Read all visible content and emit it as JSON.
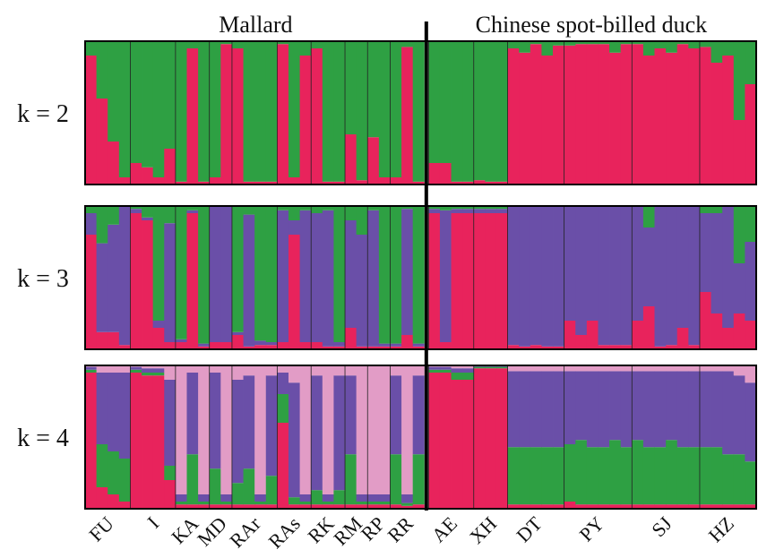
{
  "chart_data": {
    "type": "bar",
    "layout": "stacked-admixture-barplot",
    "group_labels": [
      "Mallard",
      "Chinese spot-billed duck"
    ],
    "row_labels": [
      "k = 2",
      "k = 3",
      "k = 4"
    ],
    "populations": [
      {
        "label": "FU",
        "group": 0,
        "n": 4
      },
      {
        "label": "I",
        "group": 0,
        "n": 4
      },
      {
        "label": "KA",
        "group": 0,
        "n": 3
      },
      {
        "label": "MD",
        "group": 0,
        "n": 2
      },
      {
        "label": "RAr",
        "group": 0,
        "n": 4
      },
      {
        "label": "RAs",
        "group": 0,
        "n": 3
      },
      {
        "label": "RK",
        "group": 0,
        "n": 3
      },
      {
        "label": "RM",
        "group": 0,
        "n": 2
      },
      {
        "label": "RP",
        "group": 0,
        "n": 2
      },
      {
        "label": "RR",
        "group": 0,
        "n": 3
      },
      {
        "label": "AE",
        "group": 1,
        "n": 4
      },
      {
        "label": "XH",
        "group": 1,
        "n": 3
      },
      {
        "label": "DT",
        "group": 1,
        "n": 5
      },
      {
        "label": "PY",
        "group": 1,
        "n": 6
      },
      {
        "label": "SJ",
        "group": 1,
        "n": 6
      },
      {
        "label": "HZ",
        "group": 1,
        "n": 5
      }
    ],
    "colors": {
      "red": "#e8235c",
      "green": "#2ea043",
      "purple": "#6a4fa8",
      "pink": "#e29cc6"
    },
    "panels": [
      {
        "k": 2,
        "clusters": [
          "red",
          "green"
        ],
        "individuals": [
          [
            0.9,
            0.1
          ],
          [
            0.6,
            0.4
          ],
          [
            0.3,
            0.7
          ],
          [
            0.05,
            0.95
          ],
          [
            0.15,
            0.85
          ],
          [
            0.12,
            0.88
          ],
          [
            0.05,
            0.95
          ],
          [
            0.25,
            0.75
          ],
          [
            0.02,
            0.98
          ],
          [
            0.95,
            0.05
          ],
          [
            0.02,
            0.98
          ],
          [
            0.05,
            0.95
          ],
          [
            0.98,
            0.02
          ],
          [
            0.95,
            0.05
          ],
          [
            0.02,
            0.98
          ],
          [
            0.02,
            0.98
          ],
          [
            0.02,
            0.98
          ],
          [
            0.98,
            0.02
          ],
          [
            0.05,
            0.95
          ],
          [
            0.9,
            0.1
          ],
          [
            0.95,
            0.05
          ],
          [
            0.02,
            0.98
          ],
          [
            0.02,
            0.98
          ],
          [
            0.35,
            0.65
          ],
          [
            0.03,
            0.97
          ],
          [
            0.33,
            0.67
          ],
          [
            0.05,
            0.95
          ],
          [
            0.05,
            0.95
          ],
          [
            0.96,
            0.04
          ],
          [
            0.02,
            0.98
          ],
          [
            0.15,
            0.85
          ],
          [
            0.15,
            0.85
          ],
          [
            0.02,
            0.98
          ],
          [
            0.02,
            0.98
          ],
          [
            0.03,
            0.97
          ],
          [
            0.02,
            0.98
          ],
          [
            0.02,
            0.98
          ],
          [
            0.95,
            0.05
          ],
          [
            0.92,
            0.08
          ],
          [
            0.98,
            0.02
          ],
          [
            0.9,
            0.1
          ],
          [
            0.97,
            0.03
          ],
          [
            0.97,
            0.03
          ],
          [
            0.98,
            0.02
          ],
          [
            0.98,
            0.02
          ],
          [
            0.98,
            0.02
          ],
          [
            0.92,
            0.08
          ],
          [
            0.98,
            0.02
          ],
          [
            0.98,
            0.02
          ],
          [
            0.9,
            0.1
          ],
          [
            0.95,
            0.05
          ],
          [
            0.92,
            0.08
          ],
          [
            0.98,
            0.02
          ],
          [
            0.95,
            0.05
          ],
          [
            0.96,
            0.04
          ],
          [
            0.85,
            0.15
          ],
          [
            0.9,
            0.1
          ],
          [
            0.45,
            0.55
          ],
          [
            0.7,
            0.3
          ]
        ]
      },
      {
        "k": 3,
        "clusters": [
          "red",
          "purple",
          "green"
        ],
        "individuals": [
          [
            0.8,
            0.15,
            0.05
          ],
          [
            0.12,
            0.62,
            0.26
          ],
          [
            0.12,
            0.75,
            0.13
          ],
          [
            0.03,
            0.97,
            0.0
          ],
          [
            0.95,
            0.03,
            0.02
          ],
          [
            0.9,
            0.02,
            0.08
          ],
          [
            0.15,
            0.05,
            0.8
          ],
          [
            0.05,
            0.83,
            0.12
          ],
          [
            0.05,
            0.02,
            0.93
          ],
          [
            0.95,
            0.02,
            0.03
          ],
          [
            0.02,
            0.02,
            0.96
          ],
          [
            0.05,
            0.95,
            0.0
          ],
          [
            0.05,
            0.95,
            0.0
          ],
          [
            0.1,
            0.02,
            0.88
          ],
          [
            0.02,
            0.92,
            0.06
          ],
          [
            0.03,
            0.03,
            0.94
          ],
          [
            0.03,
            0.02,
            0.95
          ],
          [
            0.05,
            0.92,
            0.03
          ],
          [
            0.8,
            0.1,
            0.1
          ],
          [
            0.05,
            0.92,
            0.03
          ],
          [
            0.05,
            0.9,
            0.05
          ],
          [
            0.02,
            0.95,
            0.03
          ],
          [
            0.02,
            0.03,
            0.95
          ],
          [
            0.15,
            0.75,
            0.1
          ],
          [
            0.02,
            0.78,
            0.2
          ],
          [
            0.02,
            0.95,
            0.03
          ],
          [
            0.02,
            0.02,
            0.96
          ],
          [
            0.02,
            0.02,
            0.96
          ],
          [
            0.1,
            0.88,
            0.02
          ],
          [
            0.02,
            0.02,
            0.96
          ],
          [
            0.95,
            0.03,
            0.02
          ],
          [
            0.05,
            0.92,
            0.03
          ],
          [
            0.95,
            0.03,
            0.02
          ],
          [
            0.95,
            0.03,
            0.02
          ],
          [
            0.95,
            0.03,
            0.02
          ],
          [
            0.95,
            0.03,
            0.02
          ],
          [
            0.95,
            0.03,
            0.02
          ],
          [
            0.03,
            0.97,
            0.0
          ],
          [
            0.02,
            0.98,
            0.0
          ],
          [
            0.03,
            0.97,
            0.0
          ],
          [
            0.02,
            0.98,
            0.0
          ],
          [
            0.02,
            0.98,
            0.0
          ],
          [
            0.2,
            0.8,
            0.0
          ],
          [
            0.1,
            0.9,
            0.0
          ],
          [
            0.2,
            0.8,
            0.0
          ],
          [
            0.03,
            0.97,
            0.0
          ],
          [
            0.03,
            0.97,
            0.0
          ],
          [
            0.03,
            0.97,
            0.0
          ],
          [
            0.2,
            0.8,
            0.0
          ],
          [
            0.3,
            0.55,
            0.15
          ],
          [
            0.02,
            0.98,
            0.0
          ],
          [
            0.03,
            0.97,
            0.0
          ],
          [
            0.15,
            0.85,
            0.0
          ],
          [
            0.03,
            0.97,
            0.0
          ],
          [
            0.4,
            0.55,
            0.05
          ],
          [
            0.25,
            0.7,
            0.05
          ],
          [
            0.15,
            0.85,
            0.0
          ],
          [
            0.25,
            0.35,
            0.4
          ],
          [
            0.2,
            0.55,
            0.25
          ]
        ]
      },
      {
        "k": 4,
        "clusters": [
          "red",
          "green",
          "purple",
          "pink"
        ],
        "individuals": [
          [
            0.95,
            0.02,
            0.02,
            0.01
          ],
          [
            0.15,
            0.3,
            0.5,
            0.05
          ],
          [
            0.1,
            0.3,
            0.55,
            0.05
          ],
          [
            0.05,
            0.3,
            0.6,
            0.05
          ],
          [
            0.95,
            0.02,
            0.02,
            0.01
          ],
          [
            0.93,
            0.02,
            0.03,
            0.02
          ],
          [
            0.93,
            0.02,
            0.03,
            0.02
          ],
          [
            0.2,
            0.1,
            0.6,
            0.1
          ],
          [
            0.03,
            0.02,
            0.05,
            0.9
          ],
          [
            0.03,
            0.35,
            0.57,
            0.05
          ],
          [
            0.03,
            0.02,
            0.05,
            0.9
          ],
          [
            0.03,
            0.25,
            0.67,
            0.05
          ],
          [
            0.03,
            0.02,
            0.05,
            0.9
          ],
          [
            0.03,
            0.15,
            0.72,
            0.1
          ],
          [
            0.03,
            0.25,
            0.65,
            0.07
          ],
          [
            0.03,
            0.02,
            0.05,
            0.9
          ],
          [
            0.03,
            0.2,
            0.7,
            0.07
          ],
          [
            0.6,
            0.2,
            0.15,
            0.05
          ],
          [
            0.03,
            0.05,
            0.8,
            0.12
          ],
          [
            0.03,
            0.02,
            0.05,
            0.9
          ],
          [
            0.03,
            0.1,
            0.8,
            0.07
          ],
          [
            0.03,
            0.02,
            0.05,
            0.9
          ],
          [
            0.03,
            0.1,
            0.8,
            0.07
          ],
          [
            0.03,
            0.35,
            0.55,
            0.07
          ],
          [
            0.03,
            0.02,
            0.05,
            0.9
          ],
          [
            0.03,
            0.02,
            0.05,
            0.9
          ],
          [
            0.03,
            0.02,
            0.05,
            0.9
          ],
          [
            0.03,
            0.35,
            0.55,
            0.07
          ],
          [
            0.02,
            0.02,
            0.06,
            0.9
          ],
          [
            0.03,
            0.35,
            0.55,
            0.07
          ],
          [
            0.95,
            0.02,
            0.02,
            0.01
          ],
          [
            0.95,
            0.02,
            0.02,
            0.01
          ],
          [
            0.9,
            0.05,
            0.03,
            0.02
          ],
          [
            0.9,
            0.05,
            0.03,
            0.02
          ],
          [
            0.98,
            0.01,
            0.01,
            0.0
          ],
          [
            0.98,
            0.01,
            0.01,
            0.0
          ],
          [
            0.98,
            0.01,
            0.01,
            0.0
          ],
          [
            0.03,
            0.4,
            0.53,
            0.04
          ],
          [
            0.03,
            0.4,
            0.53,
            0.04
          ],
          [
            0.03,
            0.4,
            0.53,
            0.04
          ],
          [
            0.03,
            0.4,
            0.53,
            0.04
          ],
          [
            0.03,
            0.4,
            0.53,
            0.04
          ],
          [
            0.05,
            0.4,
            0.51,
            0.04
          ],
          [
            0.03,
            0.45,
            0.48,
            0.04
          ],
          [
            0.03,
            0.4,
            0.53,
            0.04
          ],
          [
            0.03,
            0.4,
            0.53,
            0.04
          ],
          [
            0.03,
            0.45,
            0.48,
            0.04
          ],
          [
            0.03,
            0.4,
            0.53,
            0.04
          ],
          [
            0.03,
            0.45,
            0.48,
            0.04
          ],
          [
            0.03,
            0.4,
            0.53,
            0.04
          ],
          [
            0.03,
            0.4,
            0.53,
            0.04
          ],
          [
            0.03,
            0.45,
            0.48,
            0.04
          ],
          [
            0.03,
            0.4,
            0.53,
            0.04
          ],
          [
            0.03,
            0.4,
            0.53,
            0.04
          ],
          [
            0.03,
            0.4,
            0.53,
            0.04
          ],
          [
            0.03,
            0.4,
            0.53,
            0.04
          ],
          [
            0.03,
            0.35,
            0.58,
            0.04
          ],
          [
            0.03,
            0.35,
            0.55,
            0.07
          ],
          [
            0.03,
            0.3,
            0.55,
            0.12
          ]
        ]
      }
    ]
  }
}
